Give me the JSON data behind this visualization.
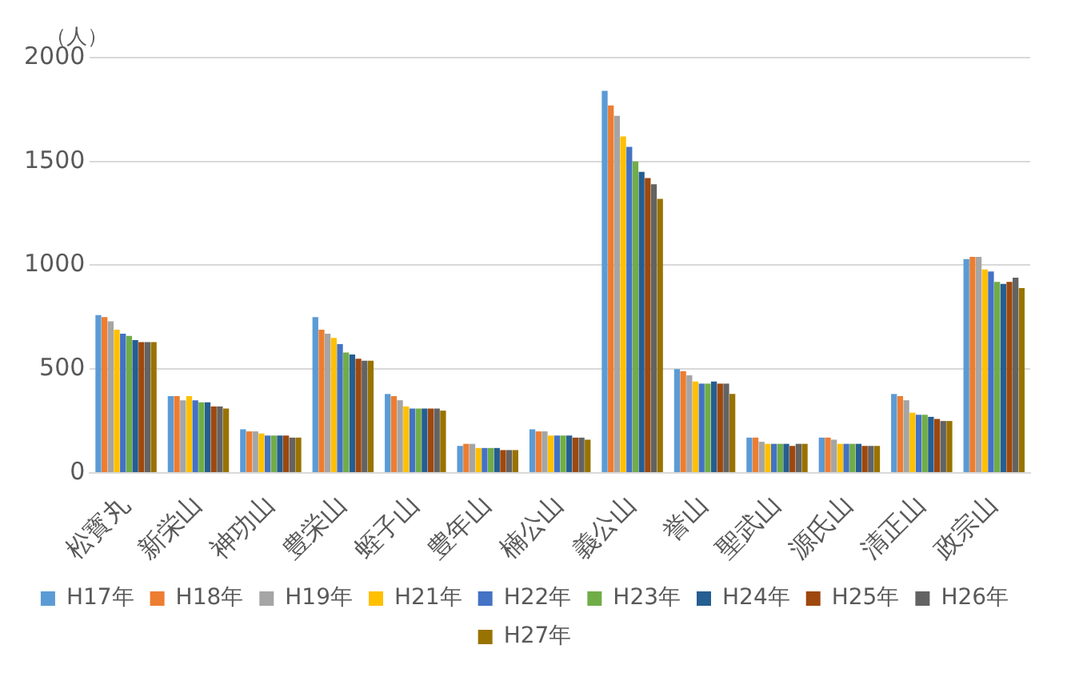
{
  "chart_data": {
    "type": "bar",
    "ylabel": "（人）",
    "categories": [
      "松寳丸",
      "新栄山",
      "神功山",
      "豊栄山",
      "蛭子山",
      "豊年山",
      "楠公山",
      "義公山",
      "誉山",
      "聖武山",
      "源氏山",
      "清正山",
      "政宗山"
    ],
    "series": [
      {
        "name": "H17年",
        "color": "#5b9bd5",
        "values": [
          760,
          370,
          210,
          750,
          380,
          130,
          210,
          1840,
          500,
          170,
          170,
          380,
          1030
        ]
      },
      {
        "name": "H18年",
        "color": "#ed7d31",
        "values": [
          750,
          370,
          200,
          690,
          370,
          140,
          200,
          1770,
          490,
          170,
          170,
          370,
          1040
        ]
      },
      {
        "name": "H19年",
        "color": "#a5a5a5",
        "values": [
          730,
          350,
          200,
          670,
          350,
          140,
          200,
          1720,
          470,
          150,
          160,
          350,
          1040
        ]
      },
      {
        "name": "H21年",
        "color": "#ffc000",
        "values": [
          690,
          370,
          190,
          650,
          320,
          120,
          180,
          1620,
          440,
          140,
          140,
          290,
          980
        ]
      },
      {
        "name": "H22年",
        "color": "#4472c4",
        "values": [
          670,
          350,
          180,
          620,
          310,
          120,
          180,
          1570,
          430,
          140,
          140,
          280,
          970
        ]
      },
      {
        "name": "H23年",
        "color": "#70ad47",
        "values": [
          660,
          340,
          180,
          580,
          310,
          120,
          180,
          1500,
          430,
          140,
          140,
          280,
          920
        ]
      },
      {
        "name": "H24年",
        "color": "#255e91",
        "values": [
          640,
          340,
          180,
          570,
          310,
          120,
          180,
          1450,
          440,
          140,
          140,
          270,
          910
        ]
      },
      {
        "name": "H25年",
        "color": "#9e480e",
        "values": [
          630,
          320,
          180,
          550,
          310,
          110,
          170,
          1420,
          430,
          130,
          130,
          260,
          920
        ]
      },
      {
        "name": "H26年",
        "color": "#636363",
        "values": [
          630,
          320,
          170,
          540,
          310,
          110,
          170,
          1390,
          430,
          140,
          130,
          250,
          940
        ]
      },
      {
        "name": "H27年",
        "color": "#997300",
        "values": [
          630,
          310,
          170,
          540,
          300,
          110,
          160,
          1320,
          380,
          140,
          130,
          250,
          890
        ]
      }
    ],
    "ylim": [
      0,
      2000
    ],
    "yticks": [
      0,
      500,
      1000,
      1500,
      2000
    ],
    "grid": "y",
    "legend": "bottom"
  }
}
